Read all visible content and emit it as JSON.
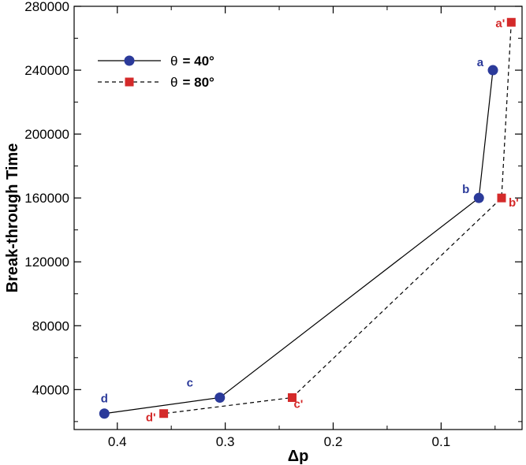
{
  "chart_data": {
    "type": "line",
    "title": "",
    "xlabel": "Δp",
    "ylabel": "Break-through Time",
    "xlim": [
      0.44,
      0.025
    ],
    "ylim": [
      15000,
      280000
    ],
    "x_inverted": true,
    "grid": false,
    "legend_position": "top-left",
    "x_ticks": [
      0.4,
      0.3,
      0.2,
      0.1
    ],
    "x_tick_labels": [
      "0.4",
      "0.3",
      "0.2",
      "0.1"
    ],
    "y_ticks": [
      40000,
      80000,
      120000,
      160000,
      200000,
      240000,
      280000
    ],
    "y_tick_labels": [
      "40000",
      "80000",
      "120000",
      "160000",
      "200000",
      "240000",
      "280000"
    ],
    "series": [
      {
        "name": "θ = 40°",
        "legend_symbol": "θ",
        "legend_value": "= 40°",
        "color": "#2b3a9a",
        "line_style": "solid",
        "marker": "circle",
        "points": [
          {
            "label": "a",
            "x": 0.052,
            "y": 240000
          },
          {
            "label": "b",
            "x": 0.065,
            "y": 160000
          },
          {
            "label": "c",
            "x": 0.305,
            "y": 35000
          },
          {
            "label": "d",
            "x": 0.412,
            "y": 25000
          }
        ]
      },
      {
        "name": "θ = 80°",
        "legend_symbol": "θ",
        "legend_value": "= 80°",
        "color": "#d42a2a",
        "line_style": "dashed",
        "marker": "square",
        "points": [
          {
            "label": "a'",
            "x": 0.035,
            "y": 270000
          },
          {
            "label": "b'",
            "x": 0.044,
            "y": 160000
          },
          {
            "label": "c'",
            "x": 0.238,
            "y": 35000
          },
          {
            "label": "d'",
            "x": 0.357,
            "y": 25000
          }
        ]
      }
    ]
  }
}
